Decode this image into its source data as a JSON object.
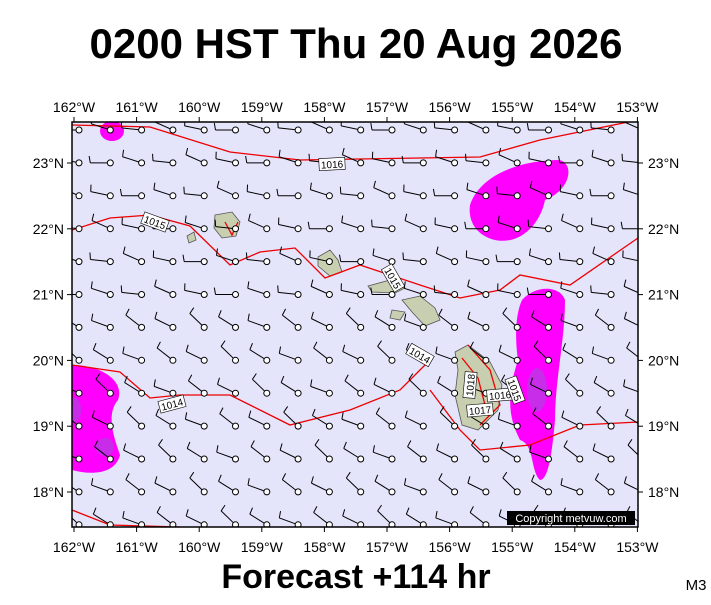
{
  "title": "0200 HST Thu 20 Aug 2026",
  "footer": "Forecast +114 hr",
  "model": "M3",
  "copyright": "Copyright metvuw.com",
  "lon_ticks": [
    {
      "value": -162,
      "label": "162°W"
    },
    {
      "value": -161,
      "label": "161°W"
    },
    {
      "value": -160,
      "label": "160°W"
    },
    {
      "value": -159,
      "label": "159°W"
    },
    {
      "value": -158,
      "label": "158°W"
    },
    {
      "value": -157,
      "label": "157°W"
    },
    {
      "value": -156,
      "label": "156°W"
    },
    {
      "value": -155,
      "label": "155°W"
    },
    {
      "value": -154,
      "label": "154°W"
    },
    {
      "value": -153,
      "label": "153°W"
    }
  ],
  "lat_ticks": [
    {
      "value": 23,
      "label": "23°N"
    },
    {
      "value": 22,
      "label": "22°N"
    },
    {
      "value": 21,
      "label": "21°N"
    },
    {
      "value": 20,
      "label": "20°N"
    },
    {
      "value": 19,
      "label": "19°N"
    },
    {
      "value": 18,
      "label": "18°N"
    }
  ],
  "isobar_labels": [
    "1016",
    "1015",
    "1015",
    "1014",
    "1014",
    "1018",
    "1017",
    "1016",
    "1015"
  ]
}
